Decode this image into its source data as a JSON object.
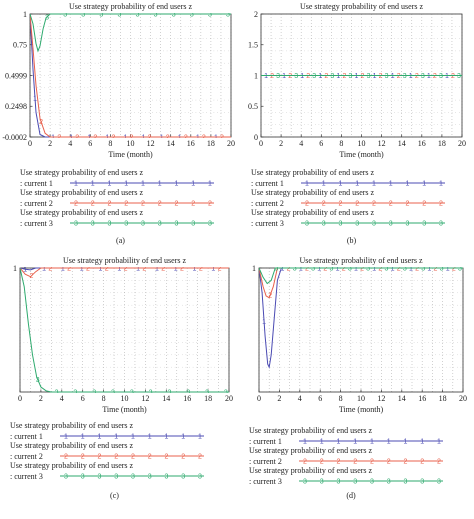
{
  "colors": {
    "series1": "#4b4bb3",
    "series2": "#e8604c",
    "series3": "#2eaa6e",
    "axis": "#333333",
    "grid": "#9a9a9a"
  },
  "chart_data": [
    {
      "panel_label": "(a)",
      "type": "line",
      "title": "Use strategy probability of end users z",
      "xlabel": "Time (month)",
      "xlim": [
        0,
        20
      ],
      "ylim": [
        -0.0002,
        1
      ],
      "xticks": [
        "0",
        "2",
        "4",
        "6",
        "8",
        "10",
        "12",
        "14",
        "16",
        "18",
        "20"
      ],
      "yticks": [
        "1",
        "0.75",
        "0.4999",
        "0.2498",
        "-0.0002"
      ],
      "ytick_values": [
        1,
        0.75,
        0.4999,
        0.2498,
        -0.0002
      ],
      "grid": true,
      "series": [
        {
          "name": "Use strategy probability of end users z : current 1",
          "marker": "1",
          "x": [
            0,
            0.3,
            0.6,
            1,
            1.5,
            2,
            3,
            5,
            10,
            20
          ],
          "y": [
            1,
            0.55,
            0.2,
            0.02,
            0,
            0,
            0,
            0,
            0,
            0
          ]
        },
        {
          "name": "Use strategy probability of end users z : current 2",
          "marker": "2",
          "x": [
            0,
            0.3,
            0.6,
            1,
            1.5,
            2,
            3,
            5,
            10,
            20
          ],
          "y": [
            1,
            0.72,
            0.42,
            0.15,
            0.03,
            0,
            0,
            0,
            0,
            0
          ]
        },
        {
          "name": "Use strategy probability of end users z : current 3",
          "marker": "3",
          "x": [
            0,
            0.3,
            0.6,
            0.8,
            1,
            1.3,
            1.6,
            2,
            3,
            5,
            10,
            20
          ],
          "y": [
            1,
            0.92,
            0.76,
            0.7,
            0.74,
            0.88,
            0.97,
            1,
            1,
            1,
            1,
            1
          ]
        }
      ]
    },
    {
      "panel_label": "(b)",
      "type": "line",
      "title": "Use strategy probability of end users z",
      "xlabel": "Time (month)",
      "xlim": [
        0,
        20
      ],
      "ylim": [
        0,
        2
      ],
      "xticks": [
        "0",
        "2",
        "4",
        "6",
        "8",
        "10",
        "12",
        "14",
        "16",
        "18",
        "20"
      ],
      "yticks": [
        "2",
        "1.5",
        "1",
        "0.5",
        "0"
      ],
      "ytick_values": [
        2,
        1.5,
        1,
        0.5,
        0
      ],
      "grid": true,
      "series": [
        {
          "name": "Use strategy probability of end users z : current 1",
          "marker": "1",
          "x": [
            0,
            20
          ],
          "y": [
            1,
            1
          ]
        },
        {
          "name": "Use strategy probability of end users z : current 2",
          "marker": "2",
          "x": [
            0,
            20
          ],
          "y": [
            1,
            1
          ]
        },
        {
          "name": "Use strategy probability of end users z : current 3",
          "marker": "3",
          "x": [
            0,
            20
          ],
          "y": [
            1,
            1
          ]
        }
      ]
    },
    {
      "panel_label": "(c)",
      "type": "line",
      "title": "Use strategy probability of end users z",
      "xlabel": "Time (month)",
      "xlim": [
        0,
        20
      ],
      "ylim": [
        0,
        1
      ],
      "xticks": [
        "0",
        "2",
        "4",
        "6",
        "8",
        "10",
        "12",
        "14",
        "16",
        "18",
        "20"
      ],
      "yticks": [
        "1"
      ],
      "ytick_values": [
        1
      ],
      "grid": true,
      "series": [
        {
          "name": "Use strategy probability of end users z : current 1",
          "marker": "1",
          "x": [
            0,
            0.5,
            1,
            1.5,
            2,
            20
          ],
          "y": [
            1,
            0.99,
            0.985,
            1,
            1,
            1
          ]
        },
        {
          "name": "Use strategy probability of end users z : current 2",
          "marker": "2",
          "x": [
            0,
            0.5,
            1,
            1.5,
            2,
            20
          ],
          "y": [
            1,
            0.95,
            0.93,
            0.97,
            1,
            1
          ]
        },
        {
          "name": "Use strategy probability of end users z : current 3",
          "marker": "3",
          "x": [
            0,
            0.4,
            0.8,
            1.2,
            1.6,
            2,
            2.5,
            3,
            4,
            20
          ],
          "y": [
            1,
            0.85,
            0.55,
            0.3,
            0.12,
            0.04,
            0.01,
            0,
            0,
            0
          ]
        }
      ]
    },
    {
      "panel_label": "(d)",
      "type": "line",
      "title": "Use strategy probability of end users z",
      "xlabel": "Time (month)",
      "xlim": [
        0,
        20
      ],
      "ylim": [
        0.8,
        1
      ],
      "xticks": [
        "0",
        "2",
        "4",
        "6",
        "8",
        "10",
        "12",
        "14",
        "16",
        "18",
        "20"
      ],
      "yticks": [
        "1"
      ],
      "ytick_values": [
        1
      ],
      "grid": true,
      "series": [
        {
          "name": "Use strategy probability of end users z : current 1",
          "marker": "1",
          "x": [
            0,
            0.3,
            0.6,
            0.85,
            1,
            1.2,
            1.5,
            1.8,
            2.2,
            20
          ],
          "y": [
            1,
            0.96,
            0.89,
            0.845,
            0.84,
            0.86,
            0.92,
            0.98,
            1,
            1
          ]
        },
        {
          "name": "Use strategy probability of end users z : current 2",
          "marker": "2",
          "x": [
            0,
            0.4,
            0.7,
            1,
            1.4,
            1.8,
            20
          ],
          "y": [
            1,
            0.97,
            0.955,
            0.952,
            0.97,
            1,
            1
          ]
        },
        {
          "name": "Use strategy probability of end users z : current 3",
          "marker": "3",
          "x": [
            0,
            0.4,
            0.8,
            1.2,
            1.6,
            20
          ],
          "y": [
            1,
            0.985,
            0.975,
            0.98,
            1,
            1
          ]
        }
      ]
    }
  ]
}
